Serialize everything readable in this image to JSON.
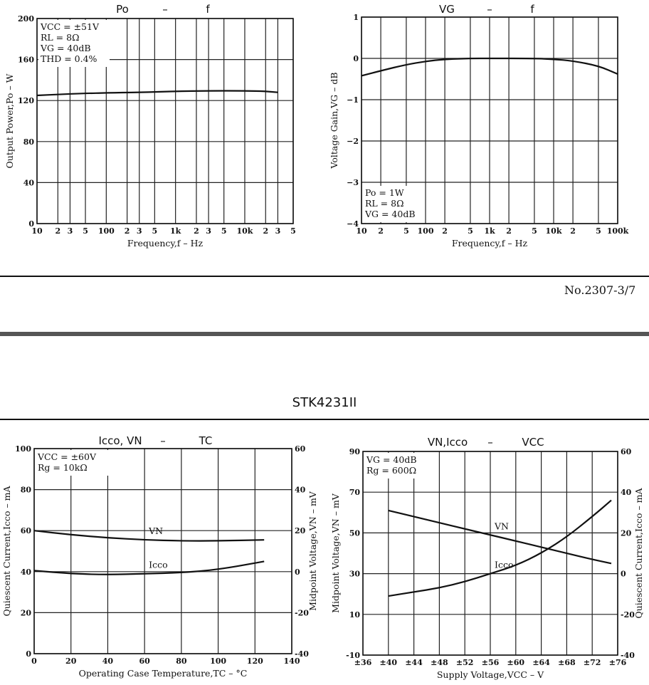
{
  "page_number": "No.2307-3/7",
  "section_title": "STK4231II",
  "chart_data": [
    {
      "id": "po-f",
      "type": "line",
      "title_parts": [
        "Po",
        "–",
        "f"
      ],
      "xlabel": "Frequency,f – Hz",
      "ylabel": "Output Power,Po – W",
      "x_scale": "log",
      "xlim": [
        10,
        50000
      ],
      "ylim": [
        0,
        200
      ],
      "x_ticks": [
        {
          "v": 10,
          "label": "10"
        },
        {
          "v": 20,
          "label": "2"
        },
        {
          "v": 30,
          "label": "3"
        },
        {
          "v": 50,
          "label": "5"
        },
        {
          "v": 100,
          "label": "100"
        },
        {
          "v": 200,
          "label": "2"
        },
        {
          "v": 300,
          "label": "3"
        },
        {
          "v": 500,
          "label": "5"
        },
        {
          "v": 1000,
          "label": "1k"
        },
        {
          "v": 2000,
          "label": "2"
        },
        {
          "v": 3000,
          "label": "3"
        },
        {
          "v": 5000,
          "label": "5"
        },
        {
          "v": 10000,
          "label": "10k"
        },
        {
          "v": 20000,
          "label": "2"
        },
        {
          "v": 30000,
          "label": "3"
        },
        {
          "v": 50000,
          "label": "5"
        }
      ],
      "y_ticks": [
        {
          "v": 0,
          "label": "0"
        },
        {
          "v": 40,
          "label": "40"
        },
        {
          "v": 80,
          "label": "80"
        },
        {
          "v": 120,
          "label": "120"
        },
        {
          "v": 160,
          "label": "160"
        },
        {
          "v": 200,
          "label": "200"
        }
      ],
      "conditions": [
        "VCC = ±51V",
        "RL = 8Ω",
        "VG = 40dB",
        "THD = 0.4%"
      ],
      "series": [
        {
          "x": [
            10,
            20,
            50,
            100,
            300,
            1000,
            3000,
            10000,
            20000,
            30000
          ],
          "y": [
            125,
            126,
            127,
            127.5,
            128,
            129,
            129.5,
            129.5,
            129,
            128
          ]
        }
      ]
    },
    {
      "id": "vg-f",
      "type": "line",
      "title_parts": [
        "VG",
        "–",
        "f"
      ],
      "xlabel": "Frequency,f – Hz",
      "ylabel": "Voltage Gain,VG – dB",
      "x_scale": "log",
      "xlim": [
        10,
        100000
      ],
      "ylim": [
        -4,
        1
      ],
      "x_ticks": [
        {
          "v": 10,
          "label": "10"
        },
        {
          "v": 20,
          "label": "2"
        },
        {
          "v": 50,
          "label": "5"
        },
        {
          "v": 100,
          "label": "100"
        },
        {
          "v": 200,
          "label": "2"
        },
        {
          "v": 500,
          "label": "5"
        },
        {
          "v": 1000,
          "label": "1k"
        },
        {
          "v": 2000,
          "label": "2"
        },
        {
          "v": 5000,
          "label": "5"
        },
        {
          "v": 10000,
          "label": "10k"
        },
        {
          "v": 20000,
          "label": "2"
        },
        {
          "v": 50000,
          "label": "5"
        },
        {
          "v": 100000,
          "label": "100k"
        }
      ],
      "y_ticks": [
        {
          "v": 1,
          "label": "1"
        },
        {
          "v": 0,
          "label": "0"
        },
        {
          "v": -1,
          "label": "−1"
        },
        {
          "v": -2,
          "label": "−2"
        },
        {
          "v": -3,
          "label": "−3"
        },
        {
          "v": -4,
          "label": "−4"
        }
      ],
      "conditions": [
        "Po = 1W",
        "RL = 8Ω",
        "VG = 40dB"
      ],
      "series": [
        {
          "x": [
            10,
            20,
            50,
            100,
            200,
            500,
            1000,
            5000,
            10000,
            20000,
            50000,
            100000
          ],
          "y": [
            -0.42,
            -0.3,
            -0.15,
            -0.07,
            -0.02,
            0,
            0,
            0,
            -0.02,
            -0.06,
            -0.18,
            -0.38
          ]
        }
      ]
    },
    {
      "id": "icco-vn-tc",
      "type": "line",
      "title_parts": [
        "Icco, VN",
        "–",
        "TC"
      ],
      "xlabel": "Operating Case Temperature,TC – °C",
      "ylabel": "Quiescent Current,Icco – mA",
      "ylabel_right": "Midpoint Voltage,VN – mV",
      "xlim": [
        0,
        140
      ],
      "ylim": [
        0,
        100
      ],
      "ylim_right": [
        -40,
        60
      ],
      "x_ticks": [
        {
          "v": 0,
          "label": "0"
        },
        {
          "v": 20,
          "label": "20"
        },
        {
          "v": 40,
          "label": "40"
        },
        {
          "v": 60,
          "label": "60"
        },
        {
          "v": 80,
          "label": "80"
        },
        {
          "v": 100,
          "label": "100"
        },
        {
          "v": 120,
          "label": "120"
        },
        {
          "v": 140,
          "label": "140"
        }
      ],
      "y_ticks": [
        {
          "v": 0,
          "label": "0"
        },
        {
          "v": 20,
          "label": "20"
        },
        {
          "v": 40,
          "label": "40"
        },
        {
          "v": 60,
          "label": "60"
        },
        {
          "v": 80,
          "label": "80"
        },
        {
          "v": 100,
          "label": "100"
        }
      ],
      "y_ticks_right": [
        {
          "v": -40,
          "label": "-40"
        },
        {
          "v": -20,
          "label": "-20"
        },
        {
          "v": 0,
          "label": "0"
        },
        {
          "v": 20,
          "label": "20"
        },
        {
          "v": 40,
          "label": "40"
        },
        {
          "v": 60,
          "label": "60"
        }
      ],
      "conditions": [
        "VCC = ±60V",
        "Rg = 10kΩ"
      ],
      "series": [
        {
          "name": "VN",
          "axis": "right",
          "x": [
            0,
            20,
            40,
            60,
            80,
            100,
            125
          ],
          "y": [
            20,
            18,
            16.5,
            15.5,
            15,
            15,
            15.5
          ]
        },
        {
          "name": "Icco",
          "axis": "left",
          "x": [
            0,
            20,
            40,
            60,
            80,
            100,
            125
          ],
          "y": [
            40.5,
            39,
            38.5,
            39,
            39.5,
            41,
            45
          ]
        }
      ]
    },
    {
      "id": "vn-icco-vcc",
      "type": "line",
      "title_parts": [
        "VN,Icco",
        "–",
        "VCC"
      ],
      "xlabel": "Supply Voltage,VCC – V",
      "ylabel": "Midpoint Voltage,VN – mV",
      "ylabel_right": "Quiescent Current,Icco – mA",
      "xlim": [
        36,
        76
      ],
      "ylim": [
        -10,
        90
      ],
      "ylim_right": [
        -40,
        60
      ],
      "x_ticks": [
        {
          "v": 36,
          "label": "±36"
        },
        {
          "v": 40,
          "label": "±40"
        },
        {
          "v": 44,
          "label": "±44"
        },
        {
          "v": 48,
          "label": "±48"
        },
        {
          "v": 52,
          "label": "±52"
        },
        {
          "v": 56,
          "label": "±56"
        },
        {
          "v": 60,
          "label": "±60"
        },
        {
          "v": 64,
          "label": "±64"
        },
        {
          "v": 68,
          "label": "±68"
        },
        {
          "v": 72,
          "label": "±72"
        },
        {
          "v": 76,
          "label": "±76"
        }
      ],
      "y_ticks": [
        {
          "v": -10,
          "label": "-10"
        },
        {
          "v": 10,
          "label": "10"
        },
        {
          "v": 30,
          "label": "30"
        },
        {
          "v": 50,
          "label": "50"
        },
        {
          "v": 70,
          "label": "70"
        },
        {
          "v": 90,
          "label": "90"
        }
      ],
      "y_ticks_right": [
        {
          "v": -40,
          "label": "-40"
        },
        {
          "v": -20,
          "label": "-20"
        },
        {
          "v": 0,
          "label": "0"
        },
        {
          "v": 20,
          "label": "20"
        },
        {
          "v": 40,
          "label": "40"
        },
        {
          "v": 60,
          "label": "60"
        }
      ],
      "conditions": [
        "VG = 40dB",
        "Rg = 600Ω"
      ],
      "series": [
        {
          "name": "VN",
          "axis": "left",
          "x": [
            40,
            44,
            48,
            52,
            56,
            60,
            64,
            68,
            72,
            75
          ],
          "y": [
            61,
            58,
            55,
            52,
            49,
            46,
            43,
            40,
            37,
            35
          ]
        },
        {
          "name": "Icco",
          "axis": "right",
          "x": [
            40,
            44,
            48,
            52,
            56,
            60,
            64,
            68,
            72,
            75
          ],
          "y": [
            -11,
            -9,
            -7,
            -4,
            0,
            4,
            10,
            18,
            28,
            36
          ]
        }
      ]
    }
  ]
}
